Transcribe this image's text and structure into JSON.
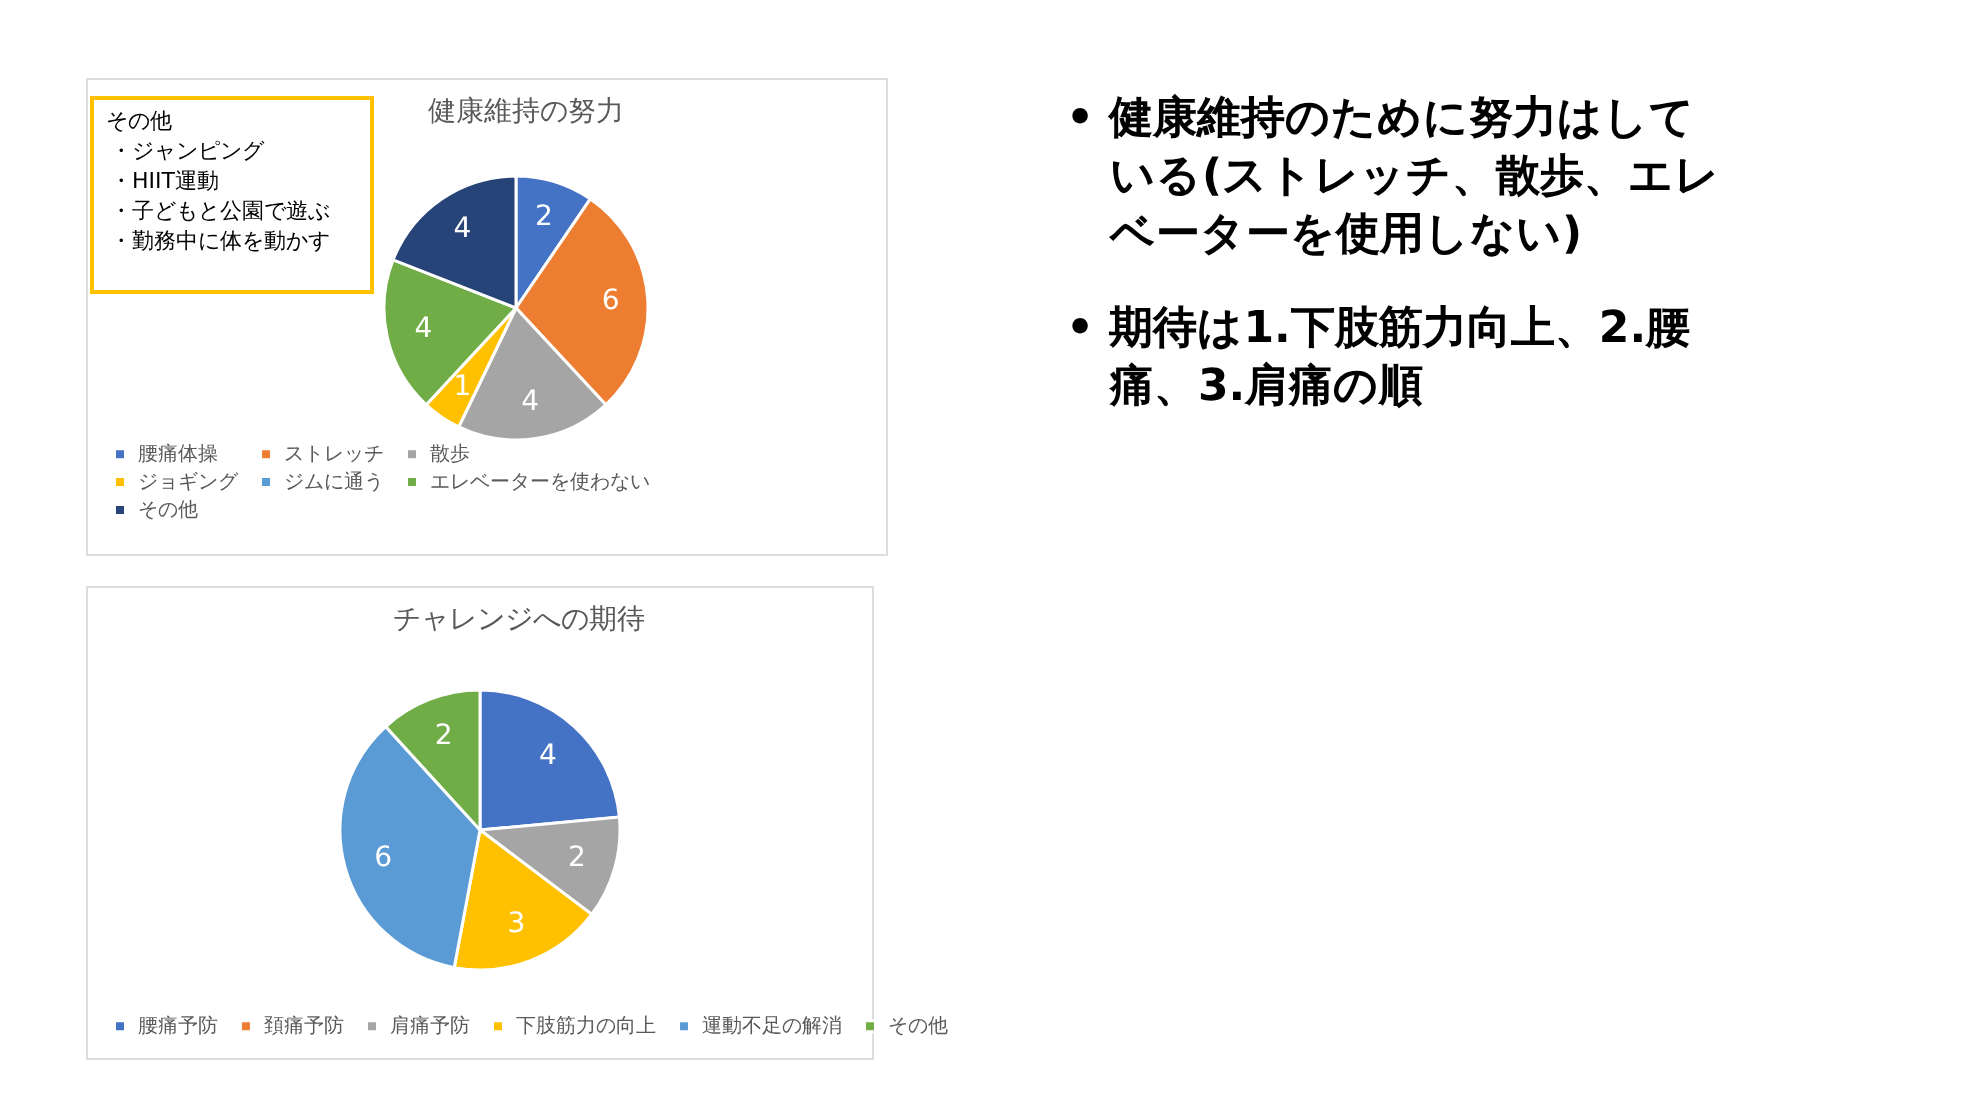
{
  "chart_data": [
    {
      "type": "pie",
      "title": "健康維持の努力",
      "categories": [
        "腰痛体操",
        "ストレッチ",
        "散歩",
        "ジョギング",
        "ジムに通う",
        "エレベーターを使わない",
        "その他"
      ],
      "values": [
        2,
        6,
        4,
        1,
        0,
        4,
        4
      ],
      "colors": [
        "#4472c4",
        "#ed7d31",
        "#a5a5a5",
        "#ffc000",
        "#5b9bd5",
        "#70ad47",
        "#264478"
      ],
      "value_labels": [
        "2",
        "6",
        "4",
        "1",
        null,
        "4",
        "4"
      ],
      "legend": "bottom",
      "annotations": [
        "その他",
        "・ジャンピング",
        "・HIIT運動",
        "・子どもと公園で遊ぶ",
        "・勤務中に体を動かす"
      ]
    },
    {
      "type": "pie",
      "title": "チャレンジへの期待",
      "categories": [
        "腰痛予防",
        "頚痛予防",
        "肩痛予防",
        "下肢筋力の向上",
        "運動不足の解消",
        "その他"
      ],
      "values": [
        4,
        0,
        2,
        3,
        6,
        2
      ],
      "colors": [
        "#4472c4",
        "#ed7d31",
        "#a5a5a5",
        "#ffc000",
        "#5b9bd5",
        "#70ad47"
      ],
      "value_labels": [
        "4",
        null,
        "2",
        "3",
        "6",
        "2"
      ],
      "legend": "bottom"
    },
    {
      "type": "other",
      "annotations": [
        "• 健康維持のために努力はしている(ストレッチ、散歩、エレベーターを使用しない)",
        "• 期待は1.下肢筋力向上、2.腰痛、3.肩痛の順"
      ]
    }
  ]
}
